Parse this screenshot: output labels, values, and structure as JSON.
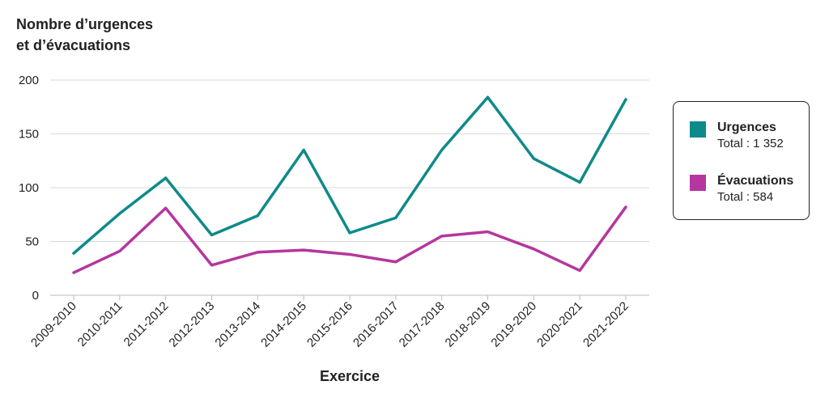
{
  "chart_data": {
    "type": "line",
    "ylabel_lines": [
      "Nombre d’urgences",
      "et d’évacuations"
    ],
    "xlabel": "Exercice",
    "categories": [
      "2009-2010",
      "2010-2011",
      "2011-2012",
      "2012-2013",
      "2013-2014",
      "2014-2015",
      "2015-2016",
      "2016-2017",
      "2017-2018",
      "2018-2019",
      "2019-2020",
      "2020-2021",
      "2021-2022"
    ],
    "yticks": [
      0,
      50,
      100,
      150,
      200
    ],
    "ylim": [
      0,
      200
    ],
    "grid": true,
    "legend_position": "right",
    "series": [
      {
        "name": "Urgences",
        "total_label": "Total : 1 352",
        "color": "#0f8a8a",
        "values": [
          39,
          76,
          109,
          56,
          74,
          135,
          58,
          72,
          135,
          184,
          127,
          105,
          182
        ]
      },
      {
        "name": "Évacuations",
        "total_label": "Total : 584",
        "color": "#b5369e",
        "values": [
          21,
          41,
          81,
          28,
          40,
          42,
          38,
          31,
          55,
          59,
          43,
          23,
          82
        ]
      }
    ]
  }
}
